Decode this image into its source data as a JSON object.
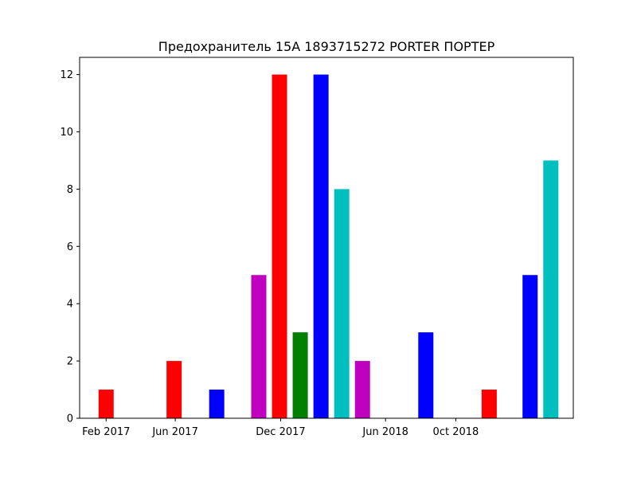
{
  "chart_data": {
    "type": "bar",
    "title": "Предохранитель 15A 1893715272 PORTER ПОРТЕР",
    "xlabel": "",
    "ylabel": "",
    "x_axis": {
      "type": "date",
      "range": [
        "2016-12-17",
        "2019-04-23"
      ]
    },
    "ylim": [
      0,
      12.6
    ],
    "grid": false,
    "x_ticks": [
      {
        "date": "2017-02-01",
        "label": "Feb 2017"
      },
      {
        "date": "2017-06-01",
        "label": "Jun 2017"
      },
      {
        "date": "2017-12-01",
        "label": "Dec 2017"
      },
      {
        "date": "2018-06-01",
        "label": "Jun 2018"
      },
      {
        "date": "2018-10-01",
        "label": "0ct 2018"
      }
    ],
    "y_ticks": [
      0,
      2,
      4,
      6,
      8,
      10,
      12
    ],
    "bars": [
      {
        "date": "2017-02-01",
        "value": 1,
        "color": "#ff0000"
      },
      {
        "date": "2017-05-30",
        "value": 2,
        "color": "#ff0000"
      },
      {
        "date": "2017-08-12",
        "value": 1,
        "color": "#0000ff"
      },
      {
        "date": "2017-10-24",
        "value": 5,
        "color": "#bf00bf"
      },
      {
        "date": "2017-11-29",
        "value": 12,
        "color": "#ff0000"
      },
      {
        "date": "2018-01-04",
        "value": 3,
        "color": "#008000"
      },
      {
        "date": "2018-02-09",
        "value": 12,
        "color": "#0000ff"
      },
      {
        "date": "2018-03-17",
        "value": 8,
        "color": "#00bfbf"
      },
      {
        "date": "2018-04-22",
        "value": 2,
        "color": "#bf00bf"
      },
      {
        "date": "2018-08-10",
        "value": 3,
        "color": "#0000ff"
      },
      {
        "date": "2018-11-28",
        "value": 1,
        "color": "#ff0000"
      },
      {
        "date": "2019-02-07",
        "value": 5,
        "color": "#0000ff"
      },
      {
        "date": "2019-03-15",
        "value": 9,
        "color": "#00bfbf"
      }
    ]
  }
}
